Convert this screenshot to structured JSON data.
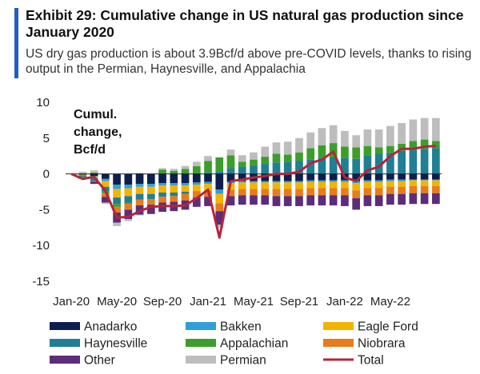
{
  "header": {
    "title": "Exhibit 29: Cumulative change in US natural gas production since January 2020",
    "subtitle": "US dry gas production is about 3.9Bcf/d above pre-COVID levels, thanks to rising output in the Permian, Haynesville, and Appalachia"
  },
  "colors": {
    "Anadarko": "#0d1f4f",
    "Bakken": "#2e9fd8",
    "Eagle Ford": "#f2b400",
    "Haynesville": "#1f7f94",
    "Appalachian": "#3c9e2a",
    "Niobrara": "#e87b1c",
    "Other": "#5b2d7a",
    "Permian": "#bdbdbd",
    "Total": "#b5253a",
    "accent": "#1f5fbf"
  },
  "chart_data": {
    "type": "bar",
    "subtype": "stacked-bar-with-line",
    "ylabel": "Cumul. change, Bcf/d",
    "ylim": [
      -15,
      10
    ],
    "yticks": [
      10,
      5,
      0,
      -5,
      -10,
      -15
    ],
    "xtick_labels": [
      "Jan-20",
      "May-20",
      "Sep-20",
      "Jan-21",
      "May-21",
      "Sep-21",
      "Jan-22",
      "May-22"
    ],
    "xtick_index": [
      0,
      4,
      8,
      12,
      16,
      20,
      24,
      28
    ],
    "categories": [
      "Jan-20",
      "Feb-20",
      "Mar-20",
      "Apr-20",
      "May-20",
      "Jun-20",
      "Jul-20",
      "Aug-20",
      "Sep-20",
      "Oct-20",
      "Nov-20",
      "Dec-20",
      "Jan-21",
      "Feb-21",
      "Mar-21",
      "Apr-21",
      "May-21",
      "Jun-21",
      "Jul-21",
      "Aug-21",
      "Sep-21",
      "Oct-21",
      "Nov-21",
      "Dec-21",
      "Jan-22",
      "Feb-22",
      "Mar-22",
      "Apr-22",
      "May-22",
      "Jun-22",
      "Jul-22",
      "Aug-22",
      "Sep-22"
    ],
    "series": [
      {
        "name": "Anadarko",
        "values": [
          0,
          -0.1,
          -0.3,
          -0.7,
          -1.5,
          -1.5,
          -1.4,
          -1.4,
          -1.3,
          -1.3,
          -1.3,
          -1.2,
          -1.1,
          -2.2,
          -1.1,
          -1.0,
          -1.0,
          -1.0,
          -1.0,
          -1.0,
          -1.0,
          -0.9,
          -0.9,
          -0.9,
          -0.9,
          -1.0,
          -0.9,
          -0.9,
          -0.8,
          -0.8,
          -0.8,
          -0.8,
          -0.8
        ]
      },
      {
        "name": "Bakken",
        "values": [
          0,
          0.1,
          -0.1,
          -0.3,
          -0.6,
          -0.5,
          -0.4,
          -0.4,
          -0.3,
          -0.3,
          -0.3,
          -0.3,
          -0.3,
          -0.6,
          -0.2,
          -0.2,
          -0.2,
          -0.2,
          -0.2,
          -0.2,
          -0.2,
          -0.2,
          -0.2,
          -0.2,
          -0.2,
          -0.3,
          -0.2,
          -0.2,
          -0.2,
          -0.2,
          -0.1,
          -0.1,
          -0.1
        ]
      },
      {
        "name": "Eagle Ford",
        "values": [
          0,
          -0.1,
          -0.2,
          -0.8,
          -1.2,
          -1.1,
          -1.0,
          -1.0,
          -1.0,
          -1.0,
          -0.9,
          -0.9,
          -0.9,
          -1.3,
          -0.9,
          -0.9,
          -0.9,
          -0.9,
          -0.9,
          -0.9,
          -0.9,
          -0.9,
          -0.9,
          -0.9,
          -0.9,
          -1.0,
          -0.9,
          -0.9,
          -0.8,
          -0.8,
          -0.8,
          -0.8,
          -0.8
        ]
      },
      {
        "name": "Haynesville",
        "values": [
          0,
          -0.2,
          -0.4,
          -0.6,
          -0.9,
          -0.9,
          -0.8,
          -0.7,
          -0.6,
          -0.5,
          -0.3,
          0.0,
          0.2,
          0.3,
          0.8,
          1.0,
          1.2,
          1.4,
          1.6,
          1.7,
          1.8,
          2.0,
          2.2,
          2.3,
          2.2,
          2.1,
          2.6,
          2.8,
          3.0,
          3.2,
          3.3,
          3.5,
          3.6
        ]
      },
      {
        "name": "Appalachian",
        "values": [
          0,
          -0.1,
          0.2,
          -0.3,
          -0.4,
          -0.2,
          0.1,
          0.0,
          0.6,
          0.4,
          0.7,
          1.1,
          1.6,
          2.0,
          1.8,
          0.7,
          0.8,
          1.0,
          1.2,
          1.0,
          1.2,
          1.6,
          1.8,
          2.0,
          1.6,
          1.6,
          1.3,
          0.9,
          0.9,
          1.0,
          1.3,
          1.3,
          1.0
        ]
      },
      {
        "name": "Niobrara",
        "values": [
          0,
          -0.1,
          -0.1,
          -0.5,
          -0.8,
          -0.8,
          -0.8,
          -0.8,
          -0.8,
          -0.8,
          -0.9,
          -0.9,
          -0.9,
          -1.1,
          -0.9,
          -0.9,
          -0.9,
          -0.9,
          -1.0,
          -1.0,
          -1.0,
          -1.0,
          -1.0,
          -1.0,
          -1.0,
          -1.1,
          -1.0,
          -1.0,
          -1.0,
          -1.0,
          -1.0,
          -1.0,
          -1.0
        ]
      },
      {
        "name": "Other",
        "values": [
          0,
          -0.1,
          -0.3,
          -0.8,
          -1.4,
          -1.3,
          -1.3,
          -1.3,
          -1.3,
          -1.3,
          -1.3,
          -1.3,
          -1.3,
          -1.9,
          -1.3,
          -1.3,
          -1.3,
          -1.3,
          -1.4,
          -1.4,
          -1.4,
          -1.4,
          -1.4,
          -1.4,
          -1.5,
          -1.6,
          -1.5,
          -1.5,
          -1.5,
          -1.5,
          -1.5,
          -1.5,
          -1.5
        ]
      },
      {
        "name": "Permian",
        "values": [
          0,
          0.2,
          0.3,
          -0.2,
          -0.5,
          -0.3,
          -0.1,
          0.0,
          0.2,
          0.3,
          0.4,
          0.6,
          0.7,
          -0.4,
          0.8,
          0.9,
          1.0,
          1.4,
          1.6,
          1.8,
          2.0,
          2.2,
          2.4,
          2.5,
          2.2,
          1.7,
          2.3,
          2.5,
          2.8,
          2.9,
          3.0,
          3.0,
          3.2
        ]
      },
      {
        "name": "Total",
        "type": "line",
        "values": [
          0,
          -0.7,
          -0.4,
          -2.4,
          -6.1,
          -6.0,
          -5.2,
          -4.6,
          -4.5,
          -4.5,
          -4.4,
          -3.4,
          -2.2,
          -8.9,
          -1.0,
          -0.8,
          -0.5,
          -0.3,
          0.0,
          0.0,
          0.3,
          1.5,
          2.0,
          3.1,
          -0.5,
          -1.0,
          0.5,
          1.0,
          2.5,
          3.5,
          3.5,
          3.8,
          3.9
        ]
      }
    ],
    "legend": {
      "placement": "bottom",
      "order": [
        "Anadarko",
        "Bakken",
        "Eagle Ford",
        "Haynesville",
        "Appalachian",
        "Niobrara",
        "Other",
        "Permian",
        "Total"
      ]
    },
    "grid": false
  }
}
